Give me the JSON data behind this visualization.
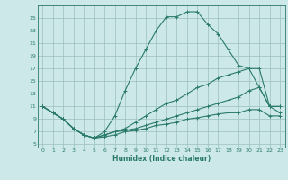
{
  "xlabel": "Humidex (Indice chaleur)",
  "background_color": "#cce8e8",
  "grid_color": "#9bbfbf",
  "line_color": "#2a7a6a",
  "xlim": [
    -0.5,
    23.5
  ],
  "ylim": [
    4.5,
    27
  ],
  "yticks": [
    5,
    7,
    9,
    11,
    13,
    15,
    17,
    19,
    21,
    23,
    25
  ],
  "xticks": [
    0,
    1,
    2,
    3,
    4,
    5,
    6,
    7,
    8,
    9,
    10,
    11,
    12,
    13,
    14,
    15,
    16,
    17,
    18,
    19,
    20,
    21,
    22,
    23
  ],
  "curve1_x": [
    0,
    1,
    2,
    3,
    4,
    5,
    6,
    7,
    8,
    9,
    10,
    11,
    12,
    13,
    14,
    15,
    16,
    17,
    18,
    19,
    20,
    21,
    22,
    23
  ],
  "curve1_y": [
    11,
    10,
    9,
    7.5,
    6.5,
    6,
    7,
    9.5,
    13.5,
    17,
    20,
    23,
    25.2,
    25.2,
    26,
    26,
    24,
    22.5,
    20,
    17.5,
    17,
    17,
    11,
    11
  ],
  "curve2_x": [
    0,
    1,
    2,
    3,
    4,
    5,
    6,
    7,
    8,
    9,
    10,
    11,
    12,
    13,
    14,
    15,
    16,
    17,
    18,
    19,
    20,
    21,
    22,
    23
  ],
  "curve2_y": [
    11,
    10,
    9,
    7.5,
    6.5,
    6,
    6.5,
    7,
    7.5,
    8.5,
    9.5,
    10.5,
    11.5,
    12,
    13,
    14,
    14.5,
    15.5,
    16,
    16.5,
    17,
    14,
    11,
    11
  ],
  "curve3_x": [
    0,
    1,
    2,
    3,
    4,
    5,
    6,
    7,
    8,
    9,
    10,
    11,
    12,
    13,
    14,
    15,
    16,
    17,
    18,
    19,
    20,
    21,
    22,
    23
  ],
  "curve3_y": [
    11,
    10,
    9,
    7.5,
    6.5,
    6,
    6.5,
    7,
    7.2,
    7.5,
    8,
    8.5,
    9,
    9.5,
    10,
    10.5,
    11,
    11.5,
    12,
    12.5,
    13.5,
    14,
    11,
    10
  ],
  "curve4_x": [
    0,
    1,
    2,
    3,
    4,
    5,
    6,
    7,
    8,
    9,
    10,
    11,
    12,
    13,
    14,
    15,
    16,
    17,
    18,
    19,
    20,
    21,
    22,
    23
  ],
  "curve4_y": [
    11,
    10,
    9,
    7.5,
    6.5,
    6,
    6.2,
    6.5,
    7,
    7.2,
    7.5,
    8,
    8.2,
    8.5,
    9,
    9.2,
    9.5,
    9.8,
    10,
    10,
    10.5,
    10.5,
    9.5,
    9.5
  ]
}
